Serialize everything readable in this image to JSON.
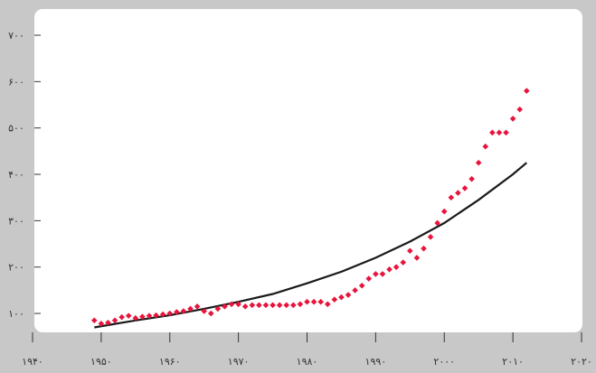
{
  "chart_data": {
    "type": "scatter",
    "title": "",
    "xlabel": "",
    "ylabel": "",
    "xlim": [
      1940,
      2020
    ],
    "ylim": [
      30,
      700
    ],
    "grid": false,
    "legend": "none",
    "x_ticks": [
      {
        "value": 1940,
        "label": "۱۹۴۰"
      },
      {
        "value": 1950,
        "label": "۱۹۵۰"
      },
      {
        "value": 1960,
        "label": "۱۹۶۰"
      },
      {
        "value": 1970,
        "label": "۱۹۷۰"
      },
      {
        "value": 1980,
        "label": "۱۹۸۰"
      },
      {
        "value": 1990,
        "label": "۱۹۹۰"
      },
      {
        "value": 2000,
        "label": "۲۰۰۰"
      },
      {
        "value": 2010,
        "label": "۲۰۱۰"
      },
      {
        "value": 2020,
        "label": "۲۰۲۰"
      }
    ],
    "y_ticks": [
      {
        "value": 100,
        "label": "۱۰۰"
      },
      {
        "value": 200,
        "label": "۲۰۰"
      },
      {
        "value": 300,
        "label": "۳۰۰"
      },
      {
        "value": 400,
        "label": "۴۰۰"
      },
      {
        "value": 500,
        "label": "۵۰۰"
      },
      {
        "value": 600,
        "label": "۶۰۰"
      },
      {
        "value": 700,
        "label": "۷۰۰"
      }
    ],
    "colors": {
      "points": "#e8143c",
      "trend": "#1a1a1a",
      "plot_bg": "#ffffff",
      "page_bg": "#c8c8c8",
      "tick": "#333333"
    },
    "series": [
      {
        "kind": "points",
        "x": [
          1949,
          1950,
          1951,
          1952,
          1953,
          1954,
          1955,
          1956,
          1957,
          1958,
          1959,
          1960,
          1961,
          1962,
          1963,
          1964,
          1965,
          1966,
          1967,
          1968,
          1969,
          1970,
          1971,
          1972,
          1973,
          1974,
          1975,
          1976,
          1977,
          1978,
          1979,
          1980,
          1981,
          1982,
          1983,
          1984,
          1985,
          1986,
          1987,
          1988,
          1989,
          1990,
          1991,
          1992,
          1993,
          1994,
          1995,
          1996,
          1997,
          1998,
          1999,
          2000,
          2001,
          2002,
          2003,
          2004,
          2005,
          2006,
          2007,
          2008,
          2009,
          2010,
          2011,
          2012
        ],
        "y": [
          85,
          78,
          80,
          85,
          92,
          95,
          90,
          93,
          95,
          96,
          98,
          100,
          103,
          105,
          110,
          115,
          105,
          100,
          110,
          115,
          120,
          120,
          115,
          118,
          118,
          118,
          118,
          118,
          118,
          118,
          120,
          125,
          125,
          125,
          120,
          130,
          135,
          140,
          150,
          160,
          175,
          185,
          185,
          195,
          200,
          210,
          235,
          220,
          240,
          265,
          295,
          320,
          350,
          360,
          370,
          390,
          425,
          460,
          490,
          490,
          490,
          520,
          540,
          580
        ]
      },
      {
        "kind": "trend",
        "x": [
          1949,
          1955,
          1960,
          1965,
          1970,
          1975,
          1980,
          1985,
          1990,
          1995,
          2000,
          2005,
          2010,
          2012
        ],
        "y": [
          70,
          85,
          96,
          110,
          125,
          142,
          165,
          190,
          220,
          255,
          295,
          345,
          400,
          425
        ]
      }
    ]
  }
}
